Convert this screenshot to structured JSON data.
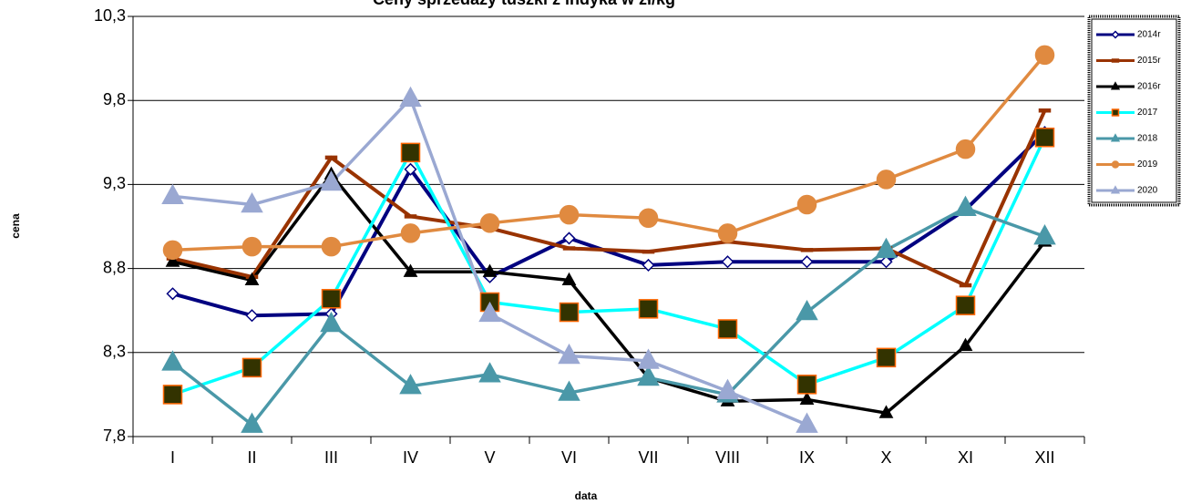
{
  "chart_data": {
    "type": "line",
    "title": "Ceny sprzedaży tuszki z indyka w zł/kg",
    "x_label": "data",
    "y_label": "cena",
    "categories": [
      "I",
      "II",
      "III",
      "IV",
      "V",
      "VI",
      "VII",
      "VIII",
      "IX",
      "X",
      "XI",
      "XII"
    ],
    "ylim": [
      7.8,
      10.3
    ],
    "yticks": [
      {
        "value": 7.8,
        "label": "7,8"
      },
      {
        "value": 8.3,
        "label": "8,3"
      },
      {
        "value": 8.8,
        "label": "8,8"
      },
      {
        "value": 9.3,
        "label": "9,3"
      },
      {
        "value": 9.8,
        "label": "9,8"
      },
      {
        "value": 10.3,
        "label": "10,3"
      }
    ],
    "grid": true,
    "legend": "right",
    "series": [
      {
        "name": "2014r",
        "color": "#000080",
        "marker": "diamond",
        "marker_fill": "#ffffff",
        "values": [
          8.65,
          8.52,
          8.53,
          9.39,
          8.75,
          8.98,
          8.82,
          8.84,
          8.84,
          8.84,
          9.15,
          9.61
        ]
      },
      {
        "name": "2015r",
        "color": "#993300",
        "marker": "dash",
        "values": [
          8.86,
          8.75,
          9.46,
          9.11,
          9.04,
          8.92,
          8.9,
          8.96,
          8.91,
          8.92,
          8.7,
          9.74
        ]
      },
      {
        "name": "2016r",
        "color": "#000000",
        "marker": "triangle",
        "values": [
          8.84,
          8.73,
          9.36,
          8.78,
          8.78,
          8.73,
          8.15,
          8.01,
          8.02,
          7.94,
          8.34,
          8.96
        ]
      },
      {
        "name": "2017",
        "color": "#00ffff",
        "marker": "square",
        "marker_fill": "#333300",
        "marker_edge": "#ff6600",
        "values": [
          8.05,
          8.21,
          8.62,
          9.49,
          8.6,
          8.54,
          8.56,
          8.44,
          8.11,
          8.27,
          8.58,
          9.58
        ]
      },
      {
        "name": "2018",
        "color": "#4a98a8",
        "marker": "triangle",
        "values": [
          8.24,
          7.87,
          8.47,
          8.1,
          8.17,
          8.06,
          8.15,
          8.05,
          8.54,
          8.91,
          9.16,
          8.99
        ]
      },
      {
        "name": "2019",
        "color": "#e08a40",
        "marker": "circle",
        "values": [
          8.91,
          8.93,
          8.93,
          9.01,
          9.07,
          9.12,
          9.1,
          9.01,
          9.18,
          9.33,
          9.51,
          10.07
        ]
      },
      {
        "name": "2020",
        "color": "#9aa8d2",
        "marker": "triangle",
        "values": [
          9.23,
          9.18,
          9.31,
          9.81,
          8.53,
          8.28,
          8.25,
          8.07,
          7.87,
          null,
          null,
          null
        ]
      }
    ]
  }
}
